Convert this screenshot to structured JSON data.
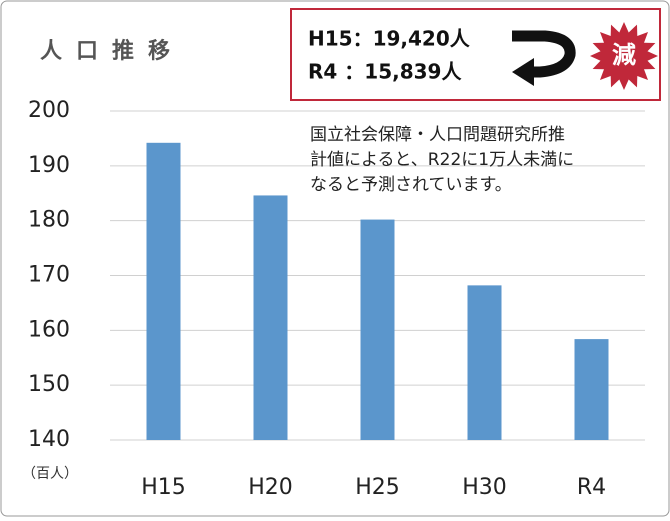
{
  "chart_data": {
    "type": "bar",
    "title": "人口推移",
    "unit_label": "（百人）",
    "categories": [
      "H15",
      "H20",
      "H25",
      "H30",
      "R4"
    ],
    "values": [
      194.2,
      184.6,
      180.2,
      168.2,
      158.4
    ],
    "color": "#5b96cc",
    "ylim": [
      140,
      200
    ],
    "yticks": [
      140,
      150,
      160,
      170,
      180,
      190,
      200
    ],
    "grid": true,
    "callout": {
      "lines": [
        "H15：19,420人",
        "R4 ：15,839人"
      ],
      "badge": "減"
    },
    "annotation": [
      "国立社会保障・人口問題研究所推",
      "計値によると、R22に1万人未満に",
      "なると予測されています。"
    ]
  }
}
